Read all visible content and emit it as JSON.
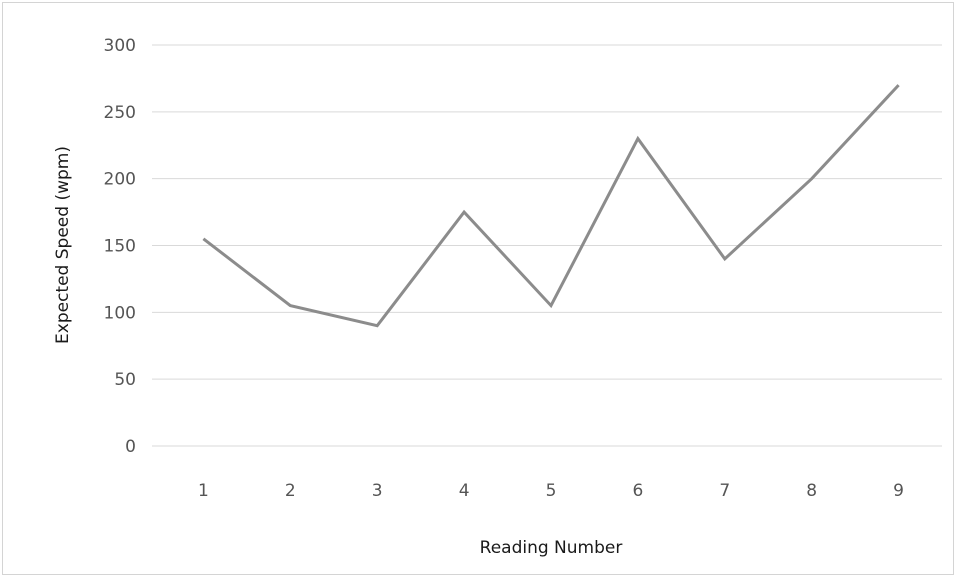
{
  "chart_data": {
    "type": "line",
    "title": "",
    "xlabel": "Reading Number",
    "ylabel": "Expected Speed (wpm)",
    "categories": [
      "1",
      "2",
      "3",
      "4",
      "5",
      "6",
      "7",
      "8",
      "9"
    ],
    "series": [
      {
        "values": [
          155,
          105,
          90,
          175,
          105,
          230,
          140,
          200,
          270
        ]
      }
    ],
    "ylim": [
      0,
      300
    ],
    "yticks": [
      "0",
      "50",
      "100",
      "150",
      "200",
      "250",
      "300"
    ],
    "grid": true,
    "legend": "none",
    "colors": {
      "line": "#8c8c8c",
      "grid": "#d9d9d9",
      "tick_text": "#555555",
      "axis_title": "#1a1a1a"
    }
  }
}
